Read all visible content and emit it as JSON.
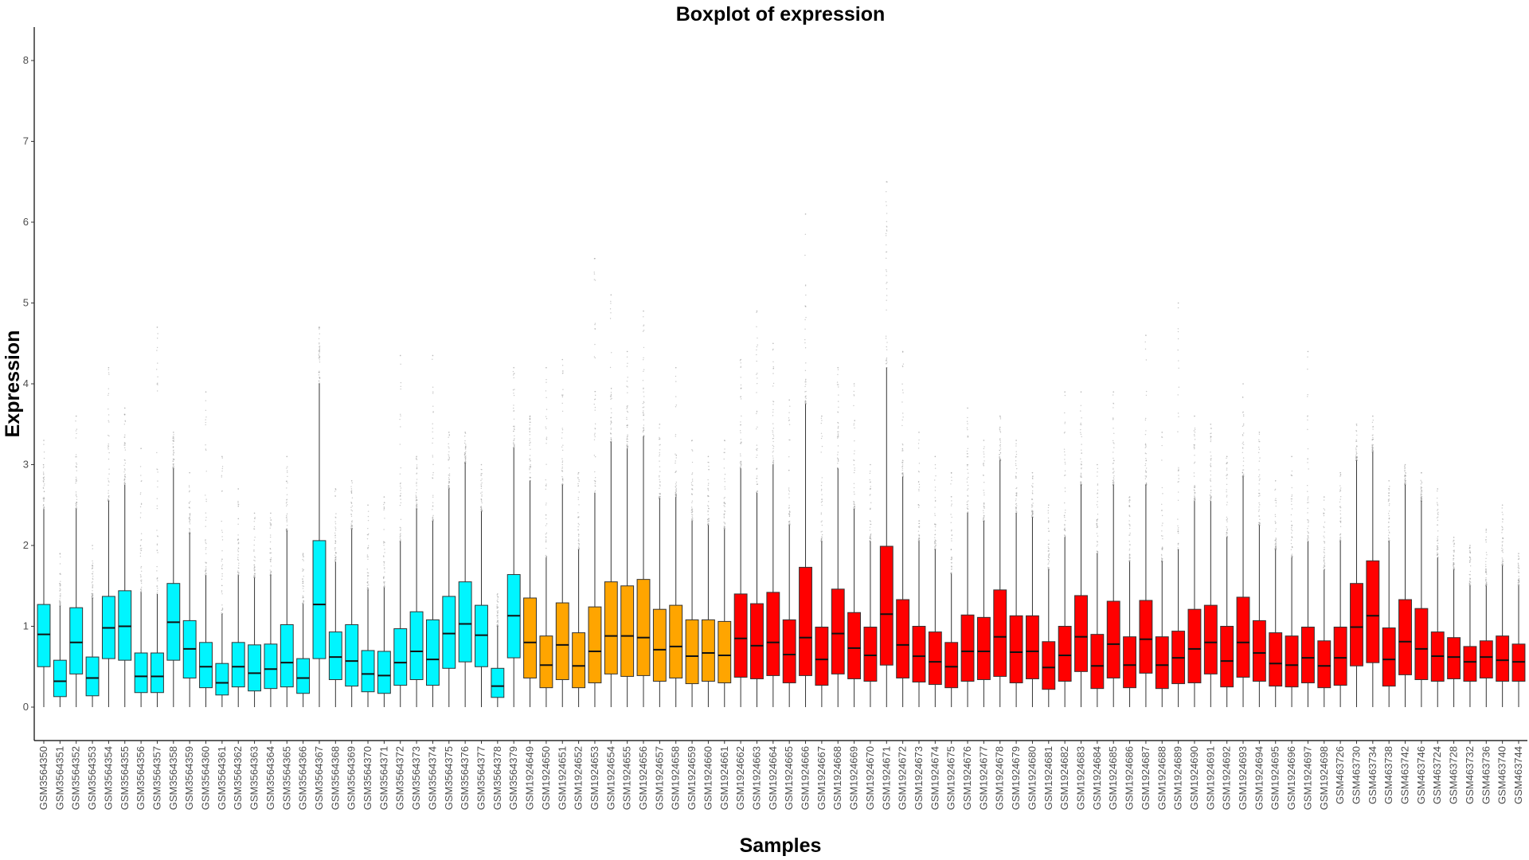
{
  "chart_data": {
    "type": "boxplot",
    "title": "Boxplot of expression",
    "xlabel": "Samples",
    "ylabel": "Expression",
    "ylim": [
      -0.4,
      8.4
    ],
    "yticks": [
      0,
      1,
      2,
      3,
      4,
      5,
      6,
      7,
      8
    ],
    "grid": false,
    "legend": "none",
    "groups": [
      {
        "color": "#00f5ff",
        "count": 30
      },
      {
        "color": "#ffa500",
        "count": 13
      },
      {
        "color": "#ff0000",
        "count": 49
      }
    ],
    "series": [
      {
        "name": "GSM3564350",
        "q1": 0.5,
        "median": 0.9,
        "q3": 1.27,
        "wlow": 0.0,
        "whigh": 2.45,
        "omax": 3.3
      },
      {
        "name": "GSM3564351",
        "q1": 0.13,
        "median": 0.32,
        "q3": 0.58,
        "wlow": 0.0,
        "whigh": 1.25,
        "omax": 1.9
      },
      {
        "name": "GSM3564352",
        "q1": 0.41,
        "median": 0.8,
        "q3": 1.23,
        "wlow": 0.0,
        "whigh": 2.45,
        "omax": 3.6
      },
      {
        "name": "GSM3564353",
        "q1": 0.14,
        "median": 0.36,
        "q3": 0.62,
        "wlow": 0.0,
        "whigh": 1.35,
        "omax": 2.0
      },
      {
        "name": "GSM3564354",
        "q1": 0.6,
        "median": 0.98,
        "q3": 1.37,
        "wlow": 0.0,
        "whigh": 2.55,
        "omax": 4.2
      },
      {
        "name": "GSM3564355",
        "q1": 0.58,
        "median": 1.0,
        "q3": 1.44,
        "wlow": 0.0,
        "whigh": 2.75,
        "omax": 3.7
      },
      {
        "name": "GSM3564356",
        "q1": 0.18,
        "median": 0.38,
        "q3": 0.67,
        "wlow": 0.0,
        "whigh": 1.42,
        "omax": 3.2
      },
      {
        "name": "GSM3564357",
        "q1": 0.18,
        "median": 0.38,
        "q3": 0.67,
        "wlow": 0.0,
        "whigh": 1.4,
        "omax": 4.7
      },
      {
        "name": "GSM3564358",
        "q1": 0.58,
        "median": 1.05,
        "q3": 1.53,
        "wlow": 0.0,
        "whigh": 2.95,
        "omax": 3.4
      },
      {
        "name": "GSM3564359",
        "q1": 0.36,
        "median": 0.72,
        "q3": 1.07,
        "wlow": 0.0,
        "whigh": 2.15,
        "omax": 2.9
      },
      {
        "name": "GSM3564360",
        "q1": 0.24,
        "median": 0.5,
        "q3": 0.8,
        "wlow": 0.0,
        "whigh": 1.63,
        "omax": 3.9
      },
      {
        "name": "GSM3564361",
        "q1": 0.15,
        "median": 0.3,
        "q3": 0.54,
        "wlow": 0.0,
        "whigh": 1.15,
        "omax": 3.1
      },
      {
        "name": "GSM3564362",
        "q1": 0.25,
        "median": 0.5,
        "q3": 0.8,
        "wlow": 0.0,
        "whigh": 1.63,
        "omax": 2.7
      },
      {
        "name": "GSM3564363",
        "q1": 0.2,
        "median": 0.42,
        "q3": 0.77,
        "wlow": 0.0,
        "whigh": 1.6,
        "omax": 2.4
      },
      {
        "name": "GSM3564364",
        "q1": 0.23,
        "median": 0.47,
        "q3": 0.78,
        "wlow": 0.0,
        "whigh": 1.63,
        "omax": 2.4
      },
      {
        "name": "GSM3564365",
        "q1": 0.25,
        "median": 0.55,
        "q3": 1.02,
        "wlow": 0.0,
        "whigh": 2.18,
        "omax": 3.1
      },
      {
        "name": "GSM3564366",
        "q1": 0.17,
        "median": 0.36,
        "q3": 0.6,
        "wlow": 0.0,
        "whigh": 1.27,
        "omax": 1.9
      },
      {
        "name": "GSM3564367",
        "q1": 0.6,
        "median": 1.27,
        "q3": 2.06,
        "wlow": 0.0,
        "whigh": 4.0,
        "omax": 4.7
      },
      {
        "name": "GSM3564368",
        "q1": 0.34,
        "median": 0.62,
        "q3": 0.93,
        "wlow": 0.0,
        "whigh": 1.8,
        "omax": 2.7
      },
      {
        "name": "GSM3564369",
        "q1": 0.26,
        "median": 0.57,
        "q3": 1.02,
        "wlow": 0.0,
        "whigh": 2.2,
        "omax": 2.8
      },
      {
        "name": "GSM3564370",
        "q1": 0.19,
        "median": 0.41,
        "q3": 0.7,
        "wlow": 0.0,
        "whigh": 1.45,
        "omax": 2.5
      },
      {
        "name": "GSM3564371",
        "q1": 0.17,
        "median": 0.39,
        "q3": 0.69,
        "wlow": 0.0,
        "whigh": 1.48,
        "omax": 2.6
      },
      {
        "name": "GSM3564372",
        "q1": 0.27,
        "median": 0.55,
        "q3": 0.97,
        "wlow": 0.0,
        "whigh": 2.05,
        "omax": 4.35
      },
      {
        "name": "GSM3564373",
        "q1": 0.34,
        "median": 0.69,
        "q3": 1.18,
        "wlow": 0.0,
        "whigh": 2.45,
        "omax": 3.1
      },
      {
        "name": "GSM3564374",
        "q1": 0.27,
        "median": 0.59,
        "q3": 1.08,
        "wlow": 0.0,
        "whigh": 2.3,
        "omax": 4.35
      },
      {
        "name": "GSM3564375",
        "q1": 0.48,
        "median": 0.91,
        "q3": 1.37,
        "wlow": 0.0,
        "whigh": 2.7,
        "omax": 3.4
      },
      {
        "name": "GSM3564376",
        "q1": 0.56,
        "median": 1.03,
        "q3": 1.55,
        "wlow": 0.0,
        "whigh": 3.02,
        "omax": 3.4
      },
      {
        "name": "GSM3564377",
        "q1": 0.5,
        "median": 0.89,
        "q3": 1.26,
        "wlow": 0.0,
        "whigh": 2.42,
        "omax": 3.0
      },
      {
        "name": "GSM3564378",
        "q1": 0.12,
        "median": 0.26,
        "q3": 0.48,
        "wlow": 0.0,
        "whigh": 1.0,
        "omax": 1.4
      },
      {
        "name": "GSM3564379",
        "q1": 0.61,
        "median": 1.13,
        "q3": 1.64,
        "wlow": 0.0,
        "whigh": 3.2,
        "omax": 4.2
      },
      {
        "name": "GSM1924649",
        "q1": 0.36,
        "median": 0.8,
        "q3": 1.35,
        "wlow": 0.0,
        "whigh": 2.8,
        "omax": 3.6
      },
      {
        "name": "GSM1924650",
        "q1": 0.24,
        "median": 0.52,
        "q3": 0.88,
        "wlow": 0.0,
        "whigh": 1.85,
        "omax": 4.2
      },
      {
        "name": "GSM1924651",
        "q1": 0.34,
        "median": 0.77,
        "q3": 1.29,
        "wlow": 0.0,
        "whigh": 2.75,
        "omax": 4.3
      },
      {
        "name": "GSM1924652",
        "q1": 0.24,
        "median": 0.51,
        "q3": 0.92,
        "wlow": 0.0,
        "whigh": 1.95,
        "omax": 2.9
      },
      {
        "name": "GSM1924653",
        "q1": 0.3,
        "median": 0.69,
        "q3": 1.24,
        "wlow": 0.0,
        "whigh": 2.65,
        "omax": 5.55
      },
      {
        "name": "GSM1924654",
        "q1": 0.41,
        "median": 0.88,
        "q3": 1.55,
        "wlow": 0.0,
        "whigh": 3.28,
        "omax": 5.1
      },
      {
        "name": "GSM1924655",
        "q1": 0.38,
        "median": 0.88,
        "q3": 1.5,
        "wlow": 0.0,
        "whigh": 3.2,
        "omax": 4.4
      },
      {
        "name": "GSM1924656",
        "q1": 0.39,
        "median": 0.86,
        "q3": 1.58,
        "wlow": 0.0,
        "whigh": 3.35,
        "omax": 4.9
      },
      {
        "name": "GSM1924657",
        "q1": 0.32,
        "median": 0.71,
        "q3": 1.21,
        "wlow": 0.0,
        "whigh": 2.58,
        "omax": 3.5
      },
      {
        "name": "GSM1924658",
        "q1": 0.36,
        "median": 0.75,
        "q3": 1.26,
        "wlow": 0.0,
        "whigh": 2.6,
        "omax": 4.2
      },
      {
        "name": "GSM1924659",
        "q1": 0.29,
        "median": 0.63,
        "q3": 1.08,
        "wlow": 0.0,
        "whigh": 2.3,
        "omax": 3.3
      },
      {
        "name": "GSM1924660",
        "q1": 0.32,
        "median": 0.67,
        "q3": 1.08,
        "wlow": 0.0,
        "whigh": 2.25,
        "omax": 3.1
      },
      {
        "name": "GSM1924661",
        "q1": 0.3,
        "median": 0.64,
        "q3": 1.06,
        "wlow": 0.0,
        "whigh": 2.2,
        "omax": 3.3
      },
      {
        "name": "GSM1924662",
        "q1": 0.37,
        "median": 0.85,
        "q3": 1.4,
        "wlow": 0.0,
        "whigh": 2.95,
        "omax": 4.3
      },
      {
        "name": "GSM1924663",
        "q1": 0.35,
        "median": 0.76,
        "q3": 1.28,
        "wlow": 0.0,
        "whigh": 2.65,
        "omax": 4.9
      },
      {
        "name": "GSM1924664",
        "q1": 0.39,
        "median": 0.8,
        "q3": 1.42,
        "wlow": 0.0,
        "whigh": 3.0,
        "omax": 4.5
      },
      {
        "name": "GSM1924665",
        "q1": 0.3,
        "median": 0.65,
        "q3": 1.08,
        "wlow": 0.0,
        "whigh": 2.25,
        "omax": 3.8
      },
      {
        "name": "GSM1924666",
        "q1": 0.39,
        "median": 0.86,
        "q3": 1.73,
        "wlow": 0.0,
        "whigh": 3.75,
        "omax": 6.1
      },
      {
        "name": "GSM1924667",
        "q1": 0.27,
        "median": 0.59,
        "q3": 0.99,
        "wlow": 0.0,
        "whigh": 2.05,
        "omax": 3.6
      },
      {
        "name": "GSM1924668",
        "q1": 0.41,
        "median": 0.91,
        "q3": 1.46,
        "wlow": 0.0,
        "whigh": 2.95,
        "omax": 4.2
      },
      {
        "name": "GSM1924669",
        "q1": 0.35,
        "median": 0.73,
        "q3": 1.17,
        "wlow": 0.0,
        "whigh": 2.45,
        "omax": 4.0
      },
      {
        "name": "GSM1924670",
        "q1": 0.32,
        "median": 0.64,
        "q3": 0.99,
        "wlow": 0.0,
        "whigh": 2.05,
        "omax": 3.0
      },
      {
        "name": "GSM1924671",
        "q1": 0.52,
        "median": 1.15,
        "q3": 1.99,
        "wlow": 0.0,
        "whigh": 4.2,
        "omax": 6.5
      },
      {
        "name": "GSM1924672",
        "q1": 0.36,
        "median": 0.77,
        "q3": 1.33,
        "wlow": 0.0,
        "whigh": 2.85,
        "omax": 4.4
      },
      {
        "name": "GSM1924673",
        "q1": 0.31,
        "median": 0.63,
        "q3": 1.0,
        "wlow": 0.0,
        "whigh": 2.05,
        "omax": 3.4
      },
      {
        "name": "GSM1924674",
        "q1": 0.28,
        "median": 0.56,
        "q3": 0.93,
        "wlow": 0.0,
        "whigh": 1.95,
        "omax": 3.1
      },
      {
        "name": "GSM1924675",
        "q1": 0.24,
        "median": 0.5,
        "q3": 0.8,
        "wlow": 0.0,
        "whigh": 1.65,
        "omax": 2.9
      },
      {
        "name": "GSM1924676",
        "q1": 0.32,
        "median": 0.69,
        "q3": 1.14,
        "wlow": 0.0,
        "whigh": 2.4,
        "omax": 3.7
      },
      {
        "name": "GSM1924677",
        "q1": 0.34,
        "median": 0.69,
        "q3": 1.11,
        "wlow": 0.0,
        "whigh": 2.3,
        "omax": 3.3
      },
      {
        "name": "GSM1924678",
        "q1": 0.38,
        "median": 0.87,
        "q3": 1.45,
        "wlow": 0.0,
        "whigh": 3.05,
        "omax": 3.6
      },
      {
        "name": "GSM1924679",
        "q1": 0.3,
        "median": 0.68,
        "q3": 1.13,
        "wlow": 0.0,
        "whigh": 2.4,
        "omax": 3.3
      },
      {
        "name": "GSM1924680",
        "q1": 0.35,
        "median": 0.69,
        "q3": 1.13,
        "wlow": 0.0,
        "whigh": 2.35,
        "omax": 2.9
      },
      {
        "name": "GSM1924681",
        "q1": 0.22,
        "median": 0.49,
        "q3": 0.81,
        "wlow": 0.0,
        "whigh": 1.7,
        "omax": 2.5
      },
      {
        "name": "GSM1924682",
        "q1": 0.32,
        "median": 0.64,
        "q3": 1.0,
        "wlow": 0.0,
        "whigh": 2.1,
        "omax": 3.9
      },
      {
        "name": "GSM1924683",
        "q1": 0.44,
        "median": 0.87,
        "q3": 1.38,
        "wlow": 0.0,
        "whigh": 2.75,
        "omax": 3.9
      },
      {
        "name": "GSM1924684",
        "q1": 0.23,
        "median": 0.51,
        "q3": 0.9,
        "wlow": 0.0,
        "whigh": 1.9,
        "omax": 3.0
      },
      {
        "name": "GSM1924685",
        "q1": 0.36,
        "median": 0.78,
        "q3": 1.31,
        "wlow": 0.0,
        "whigh": 2.75,
        "omax": 3.9
      },
      {
        "name": "GSM1924686",
        "q1": 0.24,
        "median": 0.52,
        "q3": 0.87,
        "wlow": 0.0,
        "whigh": 1.8,
        "omax": 2.6
      },
      {
        "name": "GSM1924687",
        "q1": 0.42,
        "median": 0.84,
        "q3": 1.32,
        "wlow": 0.0,
        "whigh": 2.75,
        "omax": 4.6
      },
      {
        "name": "GSM1924688",
        "q1": 0.23,
        "median": 0.52,
        "q3": 0.87,
        "wlow": 0.0,
        "whigh": 1.8,
        "omax": 3.4
      },
      {
        "name": "GSM1924689",
        "q1": 0.29,
        "median": 0.61,
        "q3": 0.94,
        "wlow": 0.0,
        "whigh": 1.95,
        "omax": 5.0
      },
      {
        "name": "GSM1924690",
        "q1": 0.3,
        "median": 0.72,
        "q3": 1.21,
        "wlow": 0.0,
        "whigh": 2.55,
        "omax": 3.6
      },
      {
        "name": "GSM1924691",
        "q1": 0.41,
        "median": 0.8,
        "q3": 1.26,
        "wlow": 0.0,
        "whigh": 2.55,
        "omax": 3.5
      },
      {
        "name": "GSM1924692",
        "q1": 0.25,
        "median": 0.57,
        "q3": 1.0,
        "wlow": 0.0,
        "whigh": 2.1,
        "omax": 3.1
      },
      {
        "name": "GSM1924693",
        "q1": 0.37,
        "median": 0.8,
        "q3": 1.36,
        "wlow": 0.0,
        "whigh": 2.85,
        "omax": 4.0
      },
      {
        "name": "GSM1924694",
        "q1": 0.32,
        "median": 0.67,
        "q3": 1.07,
        "wlow": 0.0,
        "whigh": 2.25,
        "omax": 3.4
      },
      {
        "name": "GSM1924695",
        "q1": 0.26,
        "median": 0.54,
        "q3": 0.92,
        "wlow": 0.0,
        "whigh": 1.95,
        "omax": 2.8
      },
      {
        "name": "GSM1924696",
        "q1": 0.25,
        "median": 0.52,
        "q3": 0.88,
        "wlow": 0.0,
        "whigh": 1.85,
        "omax": 3.1
      },
      {
        "name": "GSM1924697",
        "q1": 0.3,
        "median": 0.61,
        "q3": 0.99,
        "wlow": 0.0,
        "whigh": 2.05,
        "omax": 4.4
      },
      {
        "name": "GSM1924698",
        "q1": 0.24,
        "median": 0.51,
        "q3": 0.82,
        "wlow": 0.0,
        "whigh": 1.7,
        "omax": 2.6
      },
      {
        "name": "GSM463726",
        "q1": 0.27,
        "median": 0.61,
        "q3": 0.99,
        "wlow": 0.0,
        "whigh": 2.05,
        "omax": 2.9
      },
      {
        "name": "GSM463730",
        "q1": 0.51,
        "median": 0.99,
        "q3": 1.53,
        "wlow": 0.0,
        "whigh": 3.05,
        "omax": 3.5
      },
      {
        "name": "GSM463734",
        "q1": 0.55,
        "median": 1.13,
        "q3": 1.81,
        "wlow": 0.0,
        "whigh": 3.15,
        "omax": 3.6
      },
      {
        "name": "GSM463738",
        "q1": 0.26,
        "median": 0.59,
        "q3": 0.98,
        "wlow": 0.0,
        "whigh": 2.05,
        "omax": 2.8
      },
      {
        "name": "GSM463742",
        "q1": 0.4,
        "median": 0.81,
        "q3": 1.33,
        "wlow": 0.0,
        "whigh": 2.75,
        "omax": 3.0
      },
      {
        "name": "GSM463746",
        "q1": 0.34,
        "median": 0.72,
        "q3": 1.22,
        "wlow": 0.0,
        "whigh": 2.55,
        "omax": 2.9
      },
      {
        "name": "GSM463724",
        "q1": 0.32,
        "median": 0.63,
        "q3": 0.93,
        "wlow": 0.0,
        "whigh": 1.85,
        "omax": 2.7
      },
      {
        "name": "GSM463728",
        "q1": 0.35,
        "median": 0.62,
        "q3": 0.86,
        "wlow": 0.0,
        "whigh": 1.7,
        "omax": 2.1
      },
      {
        "name": "GSM463732",
        "q1": 0.32,
        "median": 0.56,
        "q3": 0.75,
        "wlow": 0.0,
        "whigh": 1.5,
        "omax": 2.0
      },
      {
        "name": "GSM463736",
        "q1": 0.36,
        "median": 0.62,
        "q3": 0.82,
        "wlow": 0.0,
        "whigh": 1.5,
        "omax": 2.2
      },
      {
        "name": "GSM463740",
        "q1": 0.32,
        "median": 0.58,
        "q3": 0.88,
        "wlow": 0.0,
        "whigh": 1.75,
        "omax": 2.5
      },
      {
        "name": "GSM463744",
        "q1": 0.32,
        "median": 0.56,
        "q3": 0.78,
        "wlow": 0.0,
        "whigh": 1.5,
        "omax": 1.9
      }
    ]
  }
}
